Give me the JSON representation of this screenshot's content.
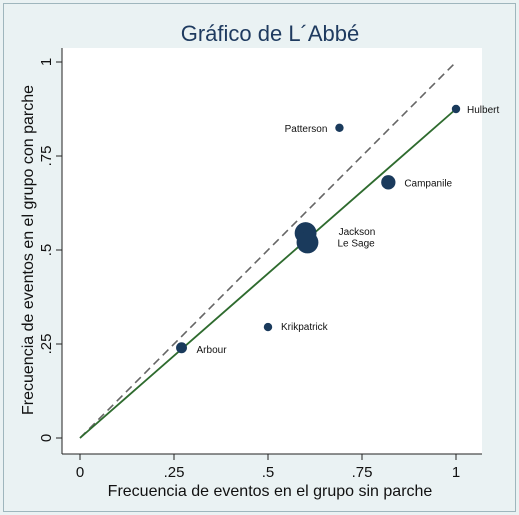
{
  "chart_data": {
    "type": "scatter",
    "title": "Gráfico de L´Abbé",
    "xlabel": "Frecuencia de eventos en el grupo sin parche",
    "ylabel": "Frecuencia de eventos en el grupo con parche",
    "xlim": [
      0,
      1
    ],
    "ylim": [
      0,
      1
    ],
    "x_ticks": [
      0,
      0.25,
      0.5,
      0.75,
      1
    ],
    "x_tick_labels": [
      "0",
      ".25",
      ".5",
      ".75",
      "1"
    ],
    "y_ticks": [
      0,
      0.25,
      0.5,
      0.75,
      1
    ],
    "y_tick_labels": [
      "0",
      ".25",
      ".5",
      ".75",
      "1"
    ],
    "grid": false,
    "points": [
      {
        "label": "Hulbert",
        "x": 1.0,
        "y": 0.875,
        "weight": 1.0
      },
      {
        "label": "Patterson",
        "x": 0.69,
        "y": 0.825,
        "weight": 1.0
      },
      {
        "label": "Campanile",
        "x": 0.82,
        "y": 0.68,
        "weight": 1.7
      },
      {
        "label": "Jackson",
        "x": 0.6,
        "y": 0.545,
        "weight": 2.6
      },
      {
        "label": "Le Sage",
        "x": 0.605,
        "y": 0.52,
        "weight": 2.6
      },
      {
        "label": "Krikpatrick",
        "x": 0.5,
        "y": 0.295,
        "weight": 1.0
      },
      {
        "label": "Arbour",
        "x": 0.27,
        "y": 0.24,
        "weight": 1.3
      }
    ],
    "reference_lines": [
      {
        "kind": "equality",
        "style": "dashed",
        "color": "#666666",
        "from": [
          0,
          0
        ],
        "to": [
          1,
          1
        ]
      },
      {
        "kind": "fit",
        "style": "solid",
        "color": "#2e6b2e",
        "from": [
          0,
          0
        ],
        "to": [
          1,
          0.875
        ]
      }
    ],
    "colors": {
      "marker": "#1a3a5c",
      "title": "#1e3a5f",
      "plot_bg": "#ffffff",
      "outer_bg": "#eaf2f3"
    }
  }
}
